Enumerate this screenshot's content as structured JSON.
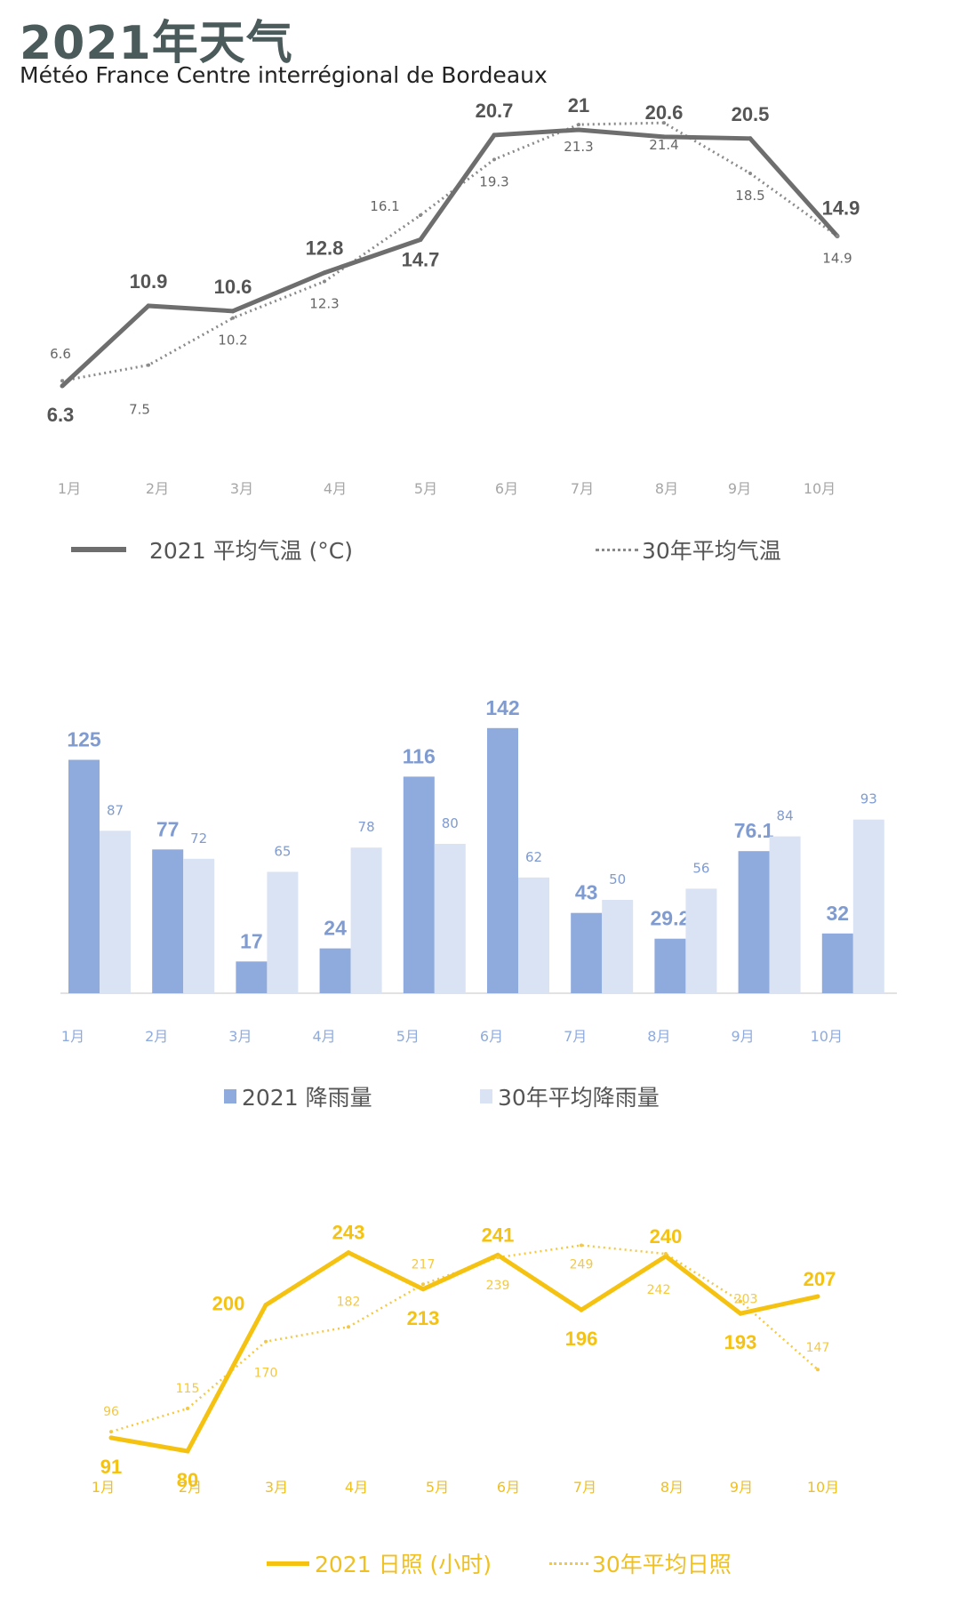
{
  "page": {
    "title": "2021年天气",
    "subtitle": "Météo France Centre interrégional de Bordeaux"
  },
  "colors": {
    "temp_2021": "#6e6e6e",
    "temp_avg": "#8a8a8a",
    "rain_2021": "#8faadc",
    "rain_avg": "#dae3f3",
    "rain_label": "#7f9bd0",
    "sun_2021": "#f5c211",
    "sun_avg": "#f5c842",
    "axis_label": "#a6a6a6",
    "rain_axis_label": "#8faadc",
    "sun_axis_label": "#f0c020"
  },
  "legends": {
    "temp_2021": "2021 平均气温 (°C)",
    "temp_avg": "30年平均气温",
    "rain_2021": "2021 降雨量",
    "rain_avg": "30年平均降雨量",
    "sun_2021": "2021 日照 (小时)",
    "sun_avg": "30年平均日照"
  },
  "chart_data": [
    {
      "id": "temperature",
      "type": "line",
      "categories": [
        "1月",
        "2月",
        "3月",
        "4月",
        "5月",
        "6月",
        "7月",
        "8月",
        "9月",
        "10月"
      ],
      "series": [
        {
          "name": "2021 平均气温 (°C)",
          "values": [
            6.3,
            10.9,
            10.6,
            12.8,
            14.7,
            20.7,
            21,
            20.6,
            20.5,
            14.9
          ],
          "style": "solid"
        },
        {
          "name": "30年平均气温",
          "values": [
            6.6,
            7.5,
            10.2,
            12.3,
            16.1,
            19.3,
            21.3,
            21.4,
            18.5,
            14.9
          ],
          "style": "dotted"
        }
      ],
      "ylim": [
        5,
        22
      ]
    },
    {
      "id": "rainfall",
      "type": "bar",
      "categories": [
        "1月",
        "2月",
        "3月",
        "4月",
        "5月",
        "6月",
        "7月",
        "8月",
        "9月",
        "10月"
      ],
      "series": [
        {
          "name": "2021 降雨量",
          "values": [
            125,
            77,
            17,
            24,
            116,
            142,
            43,
            29.2,
            76.1,
            32
          ]
        },
        {
          "name": "30年平均降雨量",
          "values": [
            87,
            72,
            65,
            78,
            80,
            62,
            50,
            56,
            84,
            93
          ]
        }
      ],
      "ylim": [
        0,
        150
      ]
    },
    {
      "id": "sunshine",
      "type": "line",
      "categories": [
        "1月",
        "2月",
        "3月",
        "4月",
        "5月",
        "6月",
        "7月",
        "8月",
        "9月",
        "10月"
      ],
      "series": [
        {
          "name": "2021 日照 (小时)",
          "values": [
            91,
            80,
            200,
            243,
            213,
            241,
            196,
            240,
            193,
            207
          ],
          "style": "solid"
        },
        {
          "name": "30年平均日照",
          "values": [
            96,
            115,
            170,
            182,
            217,
            239,
            249,
            242,
            203,
            147
          ],
          "style": "dotted"
        }
      ],
      "ylim": [
        60,
        260
      ]
    }
  ]
}
